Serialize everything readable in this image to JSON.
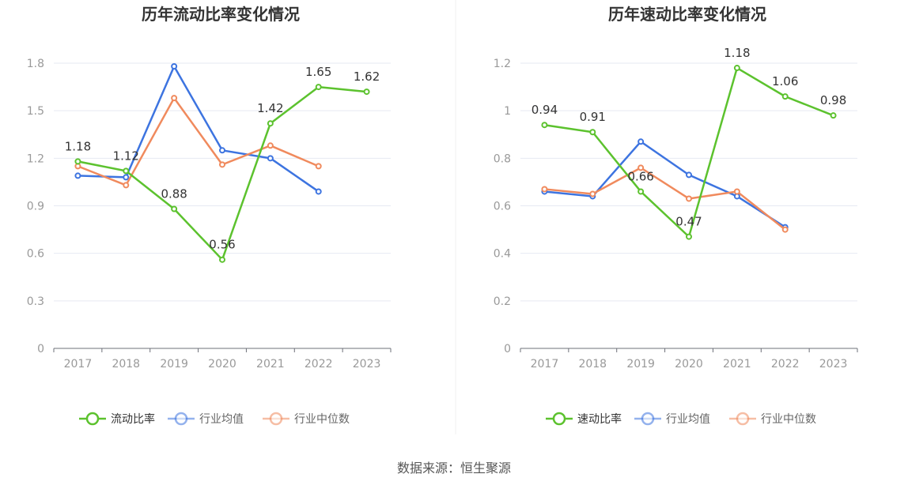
{
  "source": "数据来源：恒生聚源",
  "chart_data": [
    {
      "type": "line",
      "title": "历年流动比率变化情况",
      "categories": [
        "2017",
        "2018",
        "2019",
        "2020",
        "2021",
        "2022",
        "2023"
      ],
      "ylim": [
        0,
        1.8
      ],
      "yticks": [
        "0",
        "0.3",
        "0.6",
        "0.9",
        "1.2",
        "1.5",
        "1.8"
      ],
      "legend_position": "bottom",
      "series": [
        {
          "name": "流动比率",
          "color": "#5cc22e",
          "values": [
            1.18,
            1.12,
            0.88,
            0.56,
            1.42,
            1.65,
            1.62
          ],
          "labels": [
            "1.18",
            "1.12",
            "0.88",
            "0.56",
            "1.42",
            "1.65",
            "1.62"
          ]
        },
        {
          "name": "行业均值",
          "color": "#3d74e0",
          "values": [
            1.09,
            1.08,
            1.78,
            1.25,
            1.2,
            0.99,
            null
          ]
        },
        {
          "name": "行业中位数",
          "color": "#f08a5d",
          "values": [
            1.15,
            1.03,
            1.58,
            1.16,
            1.28,
            1.15,
            null
          ]
        }
      ]
    },
    {
      "type": "line",
      "title": "历年速动比率变化情况",
      "categories": [
        "2017",
        "2018",
        "2019",
        "2020",
        "2021",
        "2022",
        "2023"
      ],
      "ylim": [
        0,
        1.2
      ],
      "yticks": [
        "0",
        "0.2",
        "0.4",
        "0.6",
        "0.8",
        "1",
        "1.2"
      ],
      "legend_position": "bottom",
      "series": [
        {
          "name": "速动比率",
          "color": "#5cc22e",
          "values": [
            0.94,
            0.91,
            0.66,
            0.47,
            1.18,
            1.06,
            0.98
          ],
          "labels": [
            "0.94",
            "0.91",
            "0.66",
            "0.47",
            "1.18",
            "1.06",
            "0.98"
          ]
        },
        {
          "name": "行业均值",
          "color": "#3d74e0",
          "values": [
            0.66,
            0.64,
            0.87,
            0.73,
            0.64,
            0.51,
            null
          ]
        },
        {
          "name": "行业中位数",
          "color": "#f08a5d",
          "values": [
            0.67,
            0.65,
            0.76,
            0.63,
            0.66,
            0.5,
            null
          ]
        }
      ]
    }
  ]
}
